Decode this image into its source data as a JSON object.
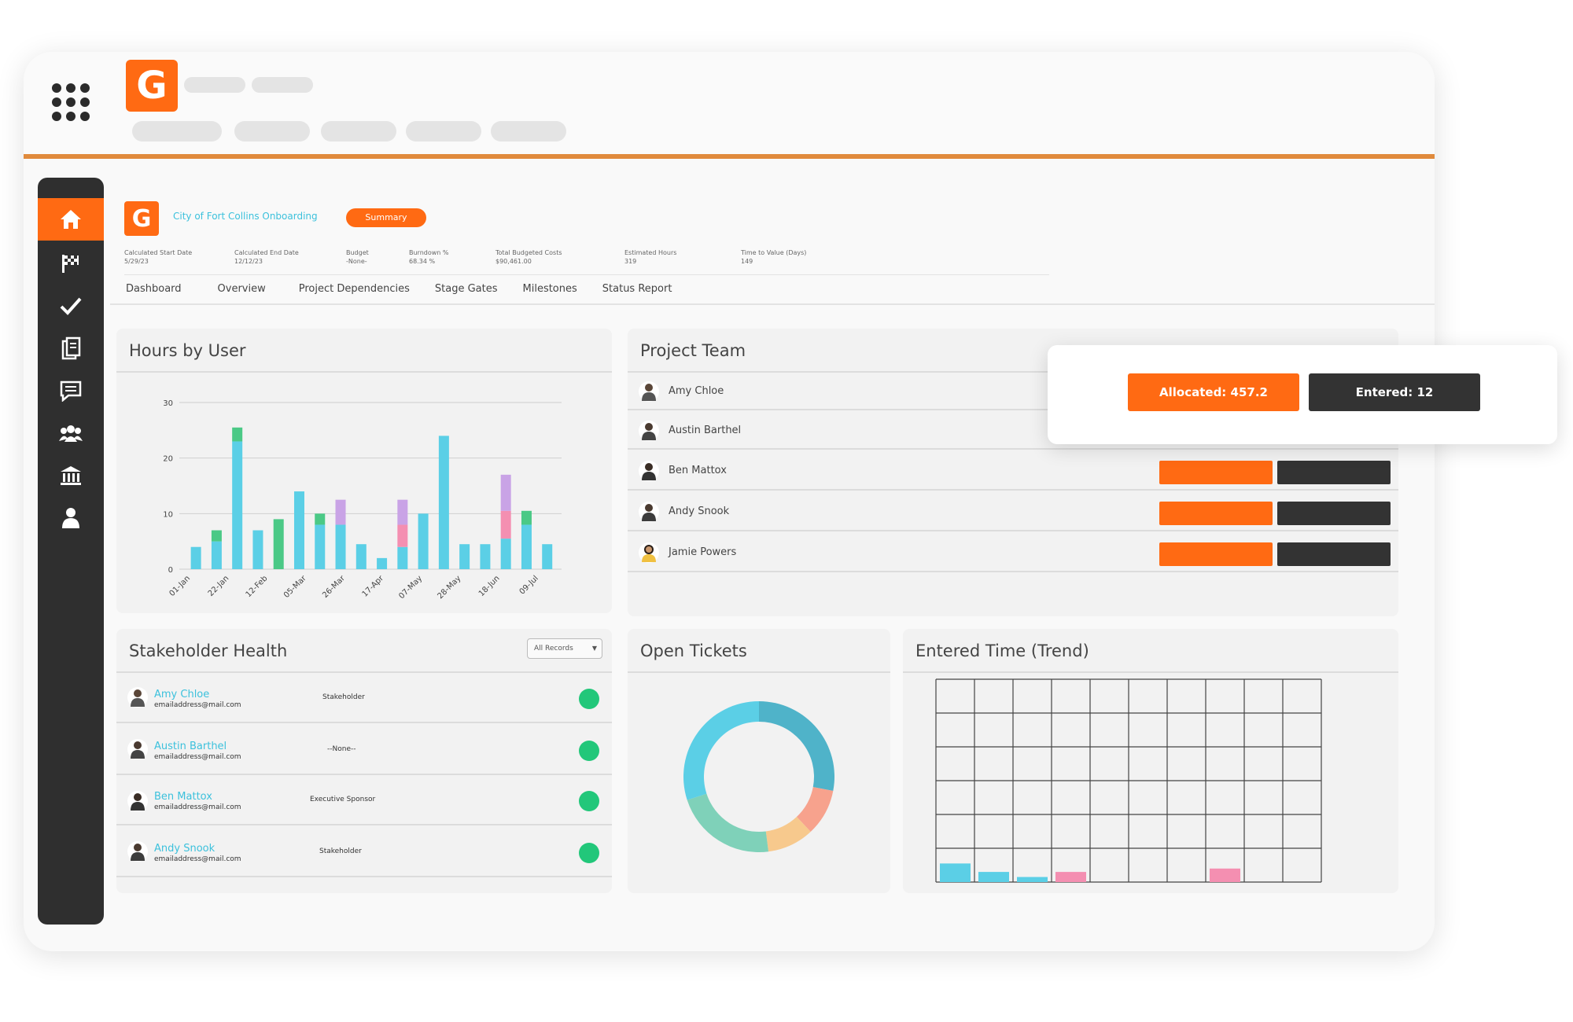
{
  "colors": {
    "accent": "#ff6a13",
    "dark": "#2f2f2f",
    "link": "#3cc1dc",
    "status_green": "#22c77a",
    "chart_teal": "#5bcfe6",
    "chart_green": "#4bc986",
    "chart_purple": "#c9a3e6",
    "chart_pink": "#f48fb1"
  },
  "brand": {
    "logo_letter": "G"
  },
  "sidebar": {
    "items": [
      {
        "icon": "home-icon",
        "glyph": "⌂"
      },
      {
        "icon": "flag-icon",
        "glyph": "⚑"
      },
      {
        "icon": "check-icon",
        "glyph": "✓"
      },
      {
        "icon": "clipboard-icon",
        "glyph": "❐"
      },
      {
        "icon": "chat-icon",
        "glyph": "▤"
      },
      {
        "icon": "users-icon",
        "glyph": "☻"
      },
      {
        "icon": "bank-icon",
        "glyph": "⌂"
      },
      {
        "icon": "user-icon",
        "glyph": "●"
      }
    ]
  },
  "project": {
    "title": "City of Fort Collins Onboarding",
    "badge": "Summary",
    "meta": [
      {
        "label": "Calculated Start Date",
        "value": "5/29/23"
      },
      {
        "label": "Calculated End Date",
        "value": "12/12/23"
      },
      {
        "label": "Budget",
        "value": "-None-"
      },
      {
        "label": "Burndown %",
        "value": "68.34 %"
      },
      {
        "label": "Total Budgeted Costs",
        "value": "$90,461.00"
      },
      {
        "label": "Estimated Hours",
        "value": "319"
      },
      {
        "label": "Time to Value (Days)",
        "value": "149"
      }
    ]
  },
  "tabs": [
    "Dashboard",
    "Overview",
    "Project Dependencies",
    "Stage Gates",
    "Milestones",
    "Status Report"
  ],
  "hours_by_user": {
    "title": "Hours by User"
  },
  "chart_data": [
    {
      "type": "bar",
      "title": "Hours by User",
      "ylim": [
        0,
        30
      ],
      "yticks": [
        0,
        10,
        20,
        30
      ],
      "xticks": [
        "01-Jan",
        "22-Jan",
        "12-Feb",
        "05-Mar",
        "26-Mar",
        "17-Apr",
        "07-May",
        "28-May",
        "18-Jun",
        "09-Jul"
      ],
      "stacked": true,
      "bars": [
        {
          "teal": 4
        },
        {
          "teal": 5,
          "green": 2
        },
        {
          "teal": 23,
          "green": 2.5
        },
        {
          "teal": 7
        },
        {
          "green": 9
        },
        {
          "teal": 14
        },
        {
          "teal": 8,
          "green": 2
        },
        {
          "teal": 8,
          "purple": 4.5
        },
        {
          "teal": 4.5
        },
        {
          "teal": 2
        },
        {
          "teal": 4,
          "pink": 4,
          "purple": 4.5
        },
        {
          "teal": 10
        },
        {
          "teal": 24
        },
        {
          "teal": 4.5
        },
        {
          "teal": 4.5
        },
        {
          "teal": 5.5,
          "pink": 5,
          "purple": 6.5
        },
        {
          "teal": 8,
          "green": 2.5
        },
        {
          "teal": 4.5
        }
      ]
    },
    {
      "type": "pie",
      "title": "Open Tickets",
      "donut": true,
      "slices": [
        {
          "color": "#4fb3c9",
          "value": 28
        },
        {
          "color": "#f7a28d",
          "value": 10
        },
        {
          "color": "#f7c98d",
          "value": 10
        },
        {
          "color": "#7fd1b9",
          "value": 22
        },
        {
          "color": "#5bcfe6",
          "value": 30
        }
      ]
    },
    {
      "type": "bar",
      "title": "Entered Time (Trend)",
      "grid": true,
      "bars": [
        {
          "color": "#5bcfe6",
          "value": 0.55
        },
        {
          "color": "#5bcfe6",
          "value": 0.3
        },
        {
          "color": "#5bcfe6",
          "value": 0.15
        },
        {
          "color": "#f48fb1",
          "value": 0.3
        },
        {
          "color": "none",
          "value": 0
        },
        {
          "color": "none",
          "value": 0
        },
        {
          "color": "none",
          "value": 0
        },
        {
          "color": "#f48fb1",
          "value": 0.4
        },
        {
          "color": "none",
          "value": 0
        },
        {
          "color": "none",
          "value": 0
        }
      ]
    }
  ],
  "project_team": {
    "title": "Project Team",
    "members": [
      "Amy Chloe",
      "Austin Barthel",
      "Ben Mattox",
      "Andy Snook",
      "Jamie Powers"
    ]
  },
  "popup": {
    "allocated": "Allocated: 457.2",
    "entered": "Entered: 12"
  },
  "stakeholder_health": {
    "title": "Stakeholder Health",
    "filter": "All Records",
    "rows": [
      {
        "name": "Amy Chloe",
        "email": "emailaddress@mail.com",
        "role": "Stakeholder"
      },
      {
        "name": "Austin Barthel",
        "email": "emailaddress@mail.com",
        "role": "--None--"
      },
      {
        "name": "Ben Mattox",
        "email": "emailaddress@mail.com",
        "role": "Executive Sponsor"
      },
      {
        "name": "Andy Snook",
        "email": "emailaddress@mail.com",
        "role": "Stakeholder"
      }
    ]
  },
  "open_tickets": {
    "title": "Open Tickets"
  },
  "entered_time": {
    "title": "Entered Time (Trend)"
  }
}
